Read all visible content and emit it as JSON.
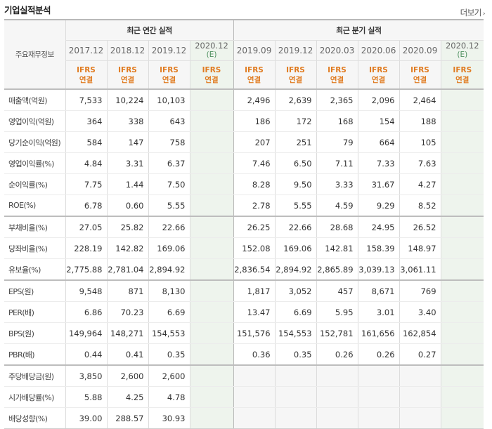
{
  "title": "기업실적분석",
  "more_label": "더보기",
  "header": {
    "label_col": "주요재무정보",
    "annual_label": "최근 연간 실적",
    "quarterly_label": "최근 분기 실적",
    "annual_dates": [
      "2017.12",
      "2018.12",
      "2019.12"
    ],
    "annual_est": {
      "date": "2020.12",
      "mark": "(E)"
    },
    "quarter_dates": [
      "2019.09",
      "2019.12",
      "2020.03",
      "2020.06",
      "2020.09"
    ],
    "quarter_est": {
      "date": "2020.12",
      "mark": "(E)"
    },
    "ifrs_top": "IFRS",
    "ifrs_bottom": "연결"
  },
  "rows": [
    {
      "label": "매출액(억원)",
      "annual": [
        "7,533",
        "10,224",
        "10,103"
      ],
      "quarter": [
        "2,496",
        "2,639",
        "2,365",
        "2,096",
        "2,464"
      ]
    },
    {
      "label": "영업이익(억원)",
      "annual": [
        "364",
        "338",
        "643"
      ],
      "quarter": [
        "186",
        "172",
        "168",
        "154",
        "188"
      ]
    },
    {
      "label": "당기순이익(억원)",
      "annual": [
        "584",
        "147",
        "758"
      ],
      "quarter": [
        "207",
        "251",
        "79",
        "664",
        "105"
      ]
    },
    {
      "label": "영업이익률(%)",
      "annual": [
        "4.84",
        "3.31",
        "6.37"
      ],
      "quarter": [
        "7.46",
        "6.50",
        "7.11",
        "7.33",
        "7.63"
      ]
    },
    {
      "label": "순이익률(%)",
      "annual": [
        "7.75",
        "1.44",
        "7.50"
      ],
      "quarter": [
        "8.28",
        "9.50",
        "3.33",
        "31.67",
        "4.27"
      ]
    },
    {
      "label": "ROE(%)",
      "annual": [
        "6.78",
        "0.60",
        "5.55"
      ],
      "quarter": [
        "2.78",
        "5.55",
        "4.59",
        "9.29",
        "8.52"
      ]
    },
    {
      "label": "부채비율(%)",
      "annual": [
        "27.05",
        "25.82",
        "22.66"
      ],
      "quarter": [
        "26.25",
        "22.66",
        "28.68",
        "24.95",
        "26.52"
      ]
    },
    {
      "label": "당좌비율(%)",
      "annual": [
        "228.19",
        "142.82",
        "169.06"
      ],
      "quarter": [
        "152.08",
        "169.06",
        "142.81",
        "158.39",
        "148.97"
      ]
    },
    {
      "label": "유보율(%)",
      "annual": [
        "2,775.88",
        "2,781.04",
        "2,894.92"
      ],
      "quarter": [
        "2,836.54",
        "2,894.92",
        "2,865.89",
        "3,039.13",
        "3,061.11"
      ]
    },
    {
      "label": "EPS(원)",
      "annual": [
        "9,548",
        "871",
        "8,130"
      ],
      "quarter": [
        "1,817",
        "3,052",
        "457",
        "8,671",
        "769"
      ]
    },
    {
      "label": "PER(배)",
      "annual": [
        "6.86",
        "70.23",
        "6.69"
      ],
      "quarter": [
        "13.47",
        "6.69",
        "5.95",
        "3.01",
        "3.40"
      ]
    },
    {
      "label": "BPS(원)",
      "annual": [
        "149,964",
        "148,271",
        "154,553"
      ],
      "quarter": [
        "151,576",
        "154,553",
        "152,781",
        "161,656",
        "162,854"
      ]
    },
    {
      "label": "PBR(배)",
      "annual": [
        "0.44",
        "0.41",
        "0.35"
      ],
      "quarter": [
        "0.36",
        "0.35",
        "0.26",
        "0.26",
        "0.27"
      ]
    },
    {
      "label": "주당배당금(원)",
      "annual": [
        "3,850",
        "2,600",
        "2,600"
      ],
      "quarter": [
        "",
        "",
        "",
        "",
        ""
      ]
    },
    {
      "label": "시가배당률(%)",
      "annual": [
        "5.88",
        "4.25",
        "4.78"
      ],
      "quarter": [
        "",
        "",
        "",
        "",
        ""
      ]
    },
    {
      "label": "배당성향(%)",
      "annual": [
        "39.00",
        "288.57",
        "30.93"
      ],
      "quarter": [
        "",
        "",
        "",
        "",
        ""
      ]
    }
  ],
  "section_starts": [
    0,
    6,
    9,
    13
  ]
}
